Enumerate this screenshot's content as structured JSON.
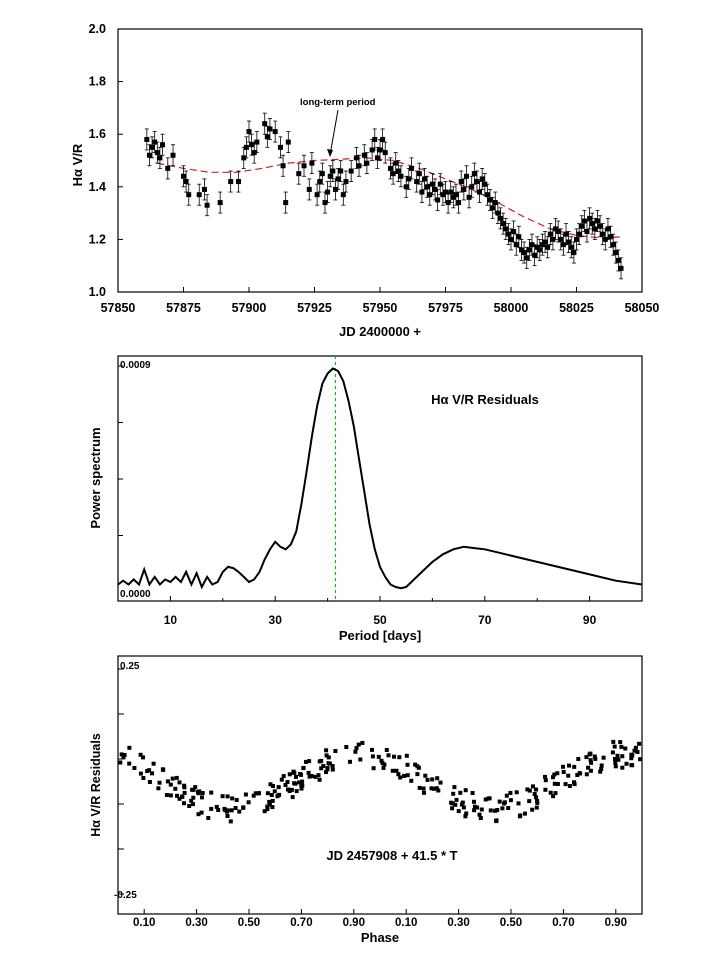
{
  "chart_data": [
    {
      "type": "scatter",
      "title": "",
      "xlabel": "JD 2400000 +",
      "ylabel": "Hα V/R",
      "xlim": [
        57850,
        58050
      ],
      "ylim": [
        1.0,
        2.0
      ],
      "xticks": [
        "57850",
        "57875",
        "57900",
        "57925",
        "57950",
        "57975",
        "58000",
        "58025",
        "58050"
      ],
      "yticks": [
        "1.0",
        "1.2",
        "1.4",
        "1.6",
        "1.8",
        "2.0"
      ],
      "annotation": "long-term period",
      "series": [
        {
          "name": "Hα V/R",
          "error_bar": 0.04,
          "points": [
            [
              57861,
              1.58
            ],
            [
              57862,
              1.52
            ],
            [
              57863,
              1.55
            ],
            [
              57864,
              1.57
            ],
            [
              57865,
              1.53
            ],
            [
              57866,
              1.51
            ],
            [
              57867,
              1.56
            ],
            [
              57869,
              1.47
            ],
            [
              57871,
              1.52
            ],
            [
              57875,
              1.44
            ],
            [
              57876,
              1.42
            ],
            [
              57877,
              1.37
            ],
            [
              57881,
              1.37
            ],
            [
              57883,
              1.39
            ],
            [
              57884,
              1.33
            ],
            [
              57889,
              1.34
            ],
            [
              57893,
              1.42
            ],
            [
              57896,
              1.42
            ],
            [
              57898,
              1.51
            ],
            [
              57899,
              1.55
            ],
            [
              57900,
              1.61
            ],
            [
              57901,
              1.56
            ],
            [
              57902,
              1.53
            ],
            [
              57903,
              1.57
            ],
            [
              57906,
              1.64
            ],
            [
              57907,
              1.59
            ],
            [
              57908,
              1.62
            ],
            [
              57910,
              1.61
            ],
            [
              57912,
              1.55
            ],
            [
              57913,
              1.48
            ],
            [
              57914,
              1.34
            ],
            [
              57915,
              1.57
            ],
            [
              57919,
              1.45
            ],
            [
              57921,
              1.48
            ],
            [
              57923,
              1.39
            ],
            [
              57924,
              1.49
            ],
            [
              57926,
              1.37
            ],
            [
              57927,
              1.42
            ],
            [
              57928,
              1.45
            ],
            [
              57929,
              1.34
            ],
            [
              57930,
              1.38
            ],
            [
              57931,
              1.44
            ],
            [
              57932,
              1.46
            ],
            [
              57933,
              1.39
            ],
            [
              57934,
              1.43
            ],
            [
              57935,
              1.46
            ],
            [
              57936,
              1.37
            ],
            [
              57937,
              1.42
            ],
            [
              57939,
              1.46
            ],
            [
              57941,
              1.51
            ],
            [
              57942,
              1.48
            ],
            [
              57944,
              1.52
            ],
            [
              57945,
              1.49
            ],
            [
              57947,
              1.54
            ],
            [
              57948,
              1.58
            ],
            [
              57949,
              1.51
            ],
            [
              57950,
              1.54
            ],
            [
              57951,
              1.58
            ],
            [
              57952,
              1.53
            ],
            [
              57954,
              1.47
            ],
            [
              57955,
              1.45
            ],
            [
              57956,
              1.49
            ],
            [
              57957,
              1.46
            ],
            [
              57958,
              1.44
            ],
            [
              57960,
              1.4
            ],
            [
              57961,
              1.43
            ],
            [
              57962,
              1.47
            ],
            [
              57964,
              1.42
            ],
            [
              57965,
              1.45
            ],
            [
              57966,
              1.38
            ],
            [
              57967,
              1.43
            ],
            [
              57968,
              1.4
            ],
            [
              57969,
              1.37
            ],
            [
              57970,
              1.41
            ],
            [
              57971,
              1.39
            ],
            [
              57972,
              1.35
            ],
            [
              57973,
              1.41
            ],
            [
              57974,
              1.37
            ],
            [
              57975,
              1.38
            ],
            [
              57976,
              1.34
            ],
            [
              57977,
              1.38
            ],
            [
              57978,
              1.36
            ],
            [
              57979,
              1.37
            ],
            [
              57980,
              1.34
            ],
            [
              57981,
              1.42
            ],
            [
              57982,
              1.39
            ],
            [
              57983,
              1.44
            ],
            [
              57984,
              1.36
            ],
            [
              57985,
              1.4
            ],
            [
              57986,
              1.45
            ],
            [
              57987,
              1.42
            ],
            [
              57988,
              1.38
            ],
            [
              57989,
              1.43
            ],
            [
              57990,
              1.41
            ],
            [
              57991,
              1.37
            ],
            [
              57992,
              1.35
            ],
            [
              57993,
              1.32
            ],
            [
              57994,
              1.34
            ],
            [
              57995,
              1.3
            ],
            [
              57996,
              1.28
            ],
            [
              57997,
              1.26
            ],
            [
              57998,
              1.24
            ],
            [
              57999,
              1.22
            ],
            [
              58000,
              1.2
            ],
            [
              58001,
              1.23
            ],
            [
              58002,
              1.18
            ],
            [
              58003,
              1.21
            ],
            [
              58004,
              1.16
            ],
            [
              58005,
              1.15
            ],
            [
              58006,
              1.13
            ],
            [
              58007,
              1.16
            ],
            [
              58008,
              1.18
            ],
            [
              58009,
              1.14
            ],
            [
              58010,
              1.17
            ],
            [
              58011,
              1.16
            ],
            [
              58012,
              1.18
            ],
            [
              58013,
              1.19
            ],
            [
              58014,
              1.17
            ],
            [
              58015,
              1.22
            ],
            [
              58016,
              1.2
            ],
            [
              58017,
              1.24
            ],
            [
              58018,
              1.23
            ],
            [
              58019,
              1.2
            ],
            [
              58020,
              1.18
            ],
            [
              58021,
              1.22
            ],
            [
              58022,
              1.19
            ],
            [
              58023,
              1.17
            ],
            [
              58024,
              1.15
            ],
            [
              58025,
              1.2
            ],
            [
              58026,
              1.22
            ],
            [
              58027,
              1.25
            ],
            [
              58028,
              1.27
            ],
            [
              58029,
              1.23
            ],
            [
              58030,
              1.28
            ],
            [
              58031,
              1.26
            ],
            [
              58032,
              1.24
            ],
            [
              58033,
              1.27
            ],
            [
              58034,
              1.25
            ],
            [
              58035,
              1.22
            ],
            [
              58036,
              1.2
            ],
            [
              58037,
              1.24
            ],
            [
              58038,
              1.21
            ],
            [
              58039,
              1.18
            ],
            [
              58040,
              1.15
            ],
            [
              58041,
              1.12
            ],
            [
              58042,
              1.09
            ]
          ]
        },
        {
          "name": "long-term period fit",
          "style": "dashed",
          "color": "#cc2222",
          "points": [
            [
              57865,
              1.49
            ],
            [
              57875,
              1.47
            ],
            [
              57885,
              1.455
            ],
            [
              57895,
              1.455
            ],
            [
              57905,
              1.47
            ],
            [
              57915,
              1.49
            ],
            [
              57925,
              1.5
            ],
            [
              57935,
              1.505
            ],
            [
              57945,
              1.51
            ],
            [
              57955,
              1.5
            ],
            [
              57965,
              1.47
            ],
            [
              57975,
              1.43
            ],
            [
              57985,
              1.39
            ],
            [
              57995,
              1.34
            ],
            [
              58005,
              1.285
            ],
            [
              58015,
              1.24
            ],
            [
              58025,
              1.215
            ],
            [
              58035,
              1.205
            ],
            [
              58042,
              1.21
            ]
          ]
        }
      ]
    },
    {
      "type": "line",
      "title": "Hα V/R Residuals",
      "xlabel": "Period [days]",
      "ylabel": "Power spectrum",
      "xlim": [
        0,
        100
      ],
      "ylim": [
        0,
        0.0009
      ],
      "xticks": [
        "10",
        "30",
        "50",
        "70",
        "90"
      ],
      "yticks": [
        "0.0000",
        "0.0009"
      ],
      "peak_marker_x": 41.5,
      "marker_color": "#22aa22",
      "series": [
        {
          "name": "Power spectrum",
          "points": [
            [
              0,
              3e-05
            ],
            [
              1,
              4.5e-05
            ],
            [
              2,
              3e-05
            ],
            [
              3,
              5e-05
            ],
            [
              4,
              3e-05
            ],
            [
              5,
              9e-05
            ],
            [
              6,
              3e-05
            ],
            [
              7,
              6e-05
            ],
            [
              8,
              3e-05
            ],
            [
              9,
              5e-05
            ],
            [
              10,
              4e-05
            ],
            [
              11,
              6e-05
            ],
            [
              12,
              4e-05
            ],
            [
              13,
              8e-05
            ],
            [
              14,
              3e-05
            ],
            [
              15,
              7.5e-05
            ],
            [
              16,
              2e-05
            ],
            [
              17,
              6e-05
            ],
            [
              18,
              3e-05
            ],
            [
              19,
              4e-05
            ],
            [
              20,
              8e-05
            ],
            [
              21,
              0.0001
            ],
            [
              22,
              9.5e-05
            ],
            [
              23,
              8e-05
            ],
            [
              24,
              6e-05
            ],
            [
              25,
              4e-05
            ],
            [
              26,
              5e-05
            ],
            [
              27,
              8e-05
            ],
            [
              28,
              0.00013
            ],
            [
              29,
              0.00017
            ],
            [
              30,
              0.0002
            ],
            [
              31,
              0.00018
            ],
            [
              32,
              0.00017
            ],
            [
              33,
              0.00019
            ],
            [
              34,
              0.00024
            ],
            [
              35,
              0.00035
            ],
            [
              36,
              0.00048
            ],
            [
              37,
              0.00062
            ],
            [
              38,
              0.00074
            ],
            [
              39,
              0.00083
            ],
            [
              40,
              0.00087
            ],
            [
              41,
              0.00089
            ],
            [
              42,
              0.00088
            ],
            [
              43,
              0.00084
            ],
            [
              44,
              0.00076
            ],
            [
              45,
              0.00066
            ],
            [
              46,
              0.00053
            ],
            [
              47,
              0.0004
            ],
            [
              48,
              0.00027
            ],
            [
              49,
              0.00017
            ],
            [
              50,
              0.0001
            ],
            [
              51,
              6e-05
            ],
            [
              52,
              3e-05
            ],
            [
              53,
              2e-05
            ],
            [
              54,
              1.5e-05
            ],
            [
              55,
              2e-05
            ],
            [
              56,
              4e-05
            ],
            [
              58,
              8e-05
            ],
            [
              60,
              0.00012
            ],
            [
              62,
              0.00015
            ],
            [
              64,
              0.00017
            ],
            [
              66,
              0.00018
            ],
            [
              68,
              0.000175
            ],
            [
              70,
              0.00017
            ],
            [
              72,
              0.00016
            ],
            [
              75,
              0.000145
            ],
            [
              80,
              0.00012
            ],
            [
              85,
              9.5e-05
            ],
            [
              90,
              7e-05
            ],
            [
              95,
              4.5e-05
            ],
            [
              100,
              3e-05
            ]
          ]
        }
      ]
    },
    {
      "type": "scatter",
      "title": "",
      "annotation": "JD 2457908 + 41.5 * T",
      "xlabel": "Phase",
      "ylabel": "Hα V/R Residuals",
      "xlim": [
        0,
        2
      ],
      "ylim": [
        -0.25,
        0.25
      ],
      "xticks": [
        "0.10",
        "0.30",
        "0.50",
        "0.70",
        "0.90",
        "0.10",
        "0.30",
        "0.50",
        "0.70",
        "0.90"
      ],
      "yticks": [
        "-0.25",
        "0.25"
      ],
      "series": [
        {
          "name": "Folded residuals",
          "generator": "folded sinusoid",
          "amplitude": 0.06,
          "scatter": 0.03,
          "count_per_cycle": 150
        }
      ]
    }
  ]
}
